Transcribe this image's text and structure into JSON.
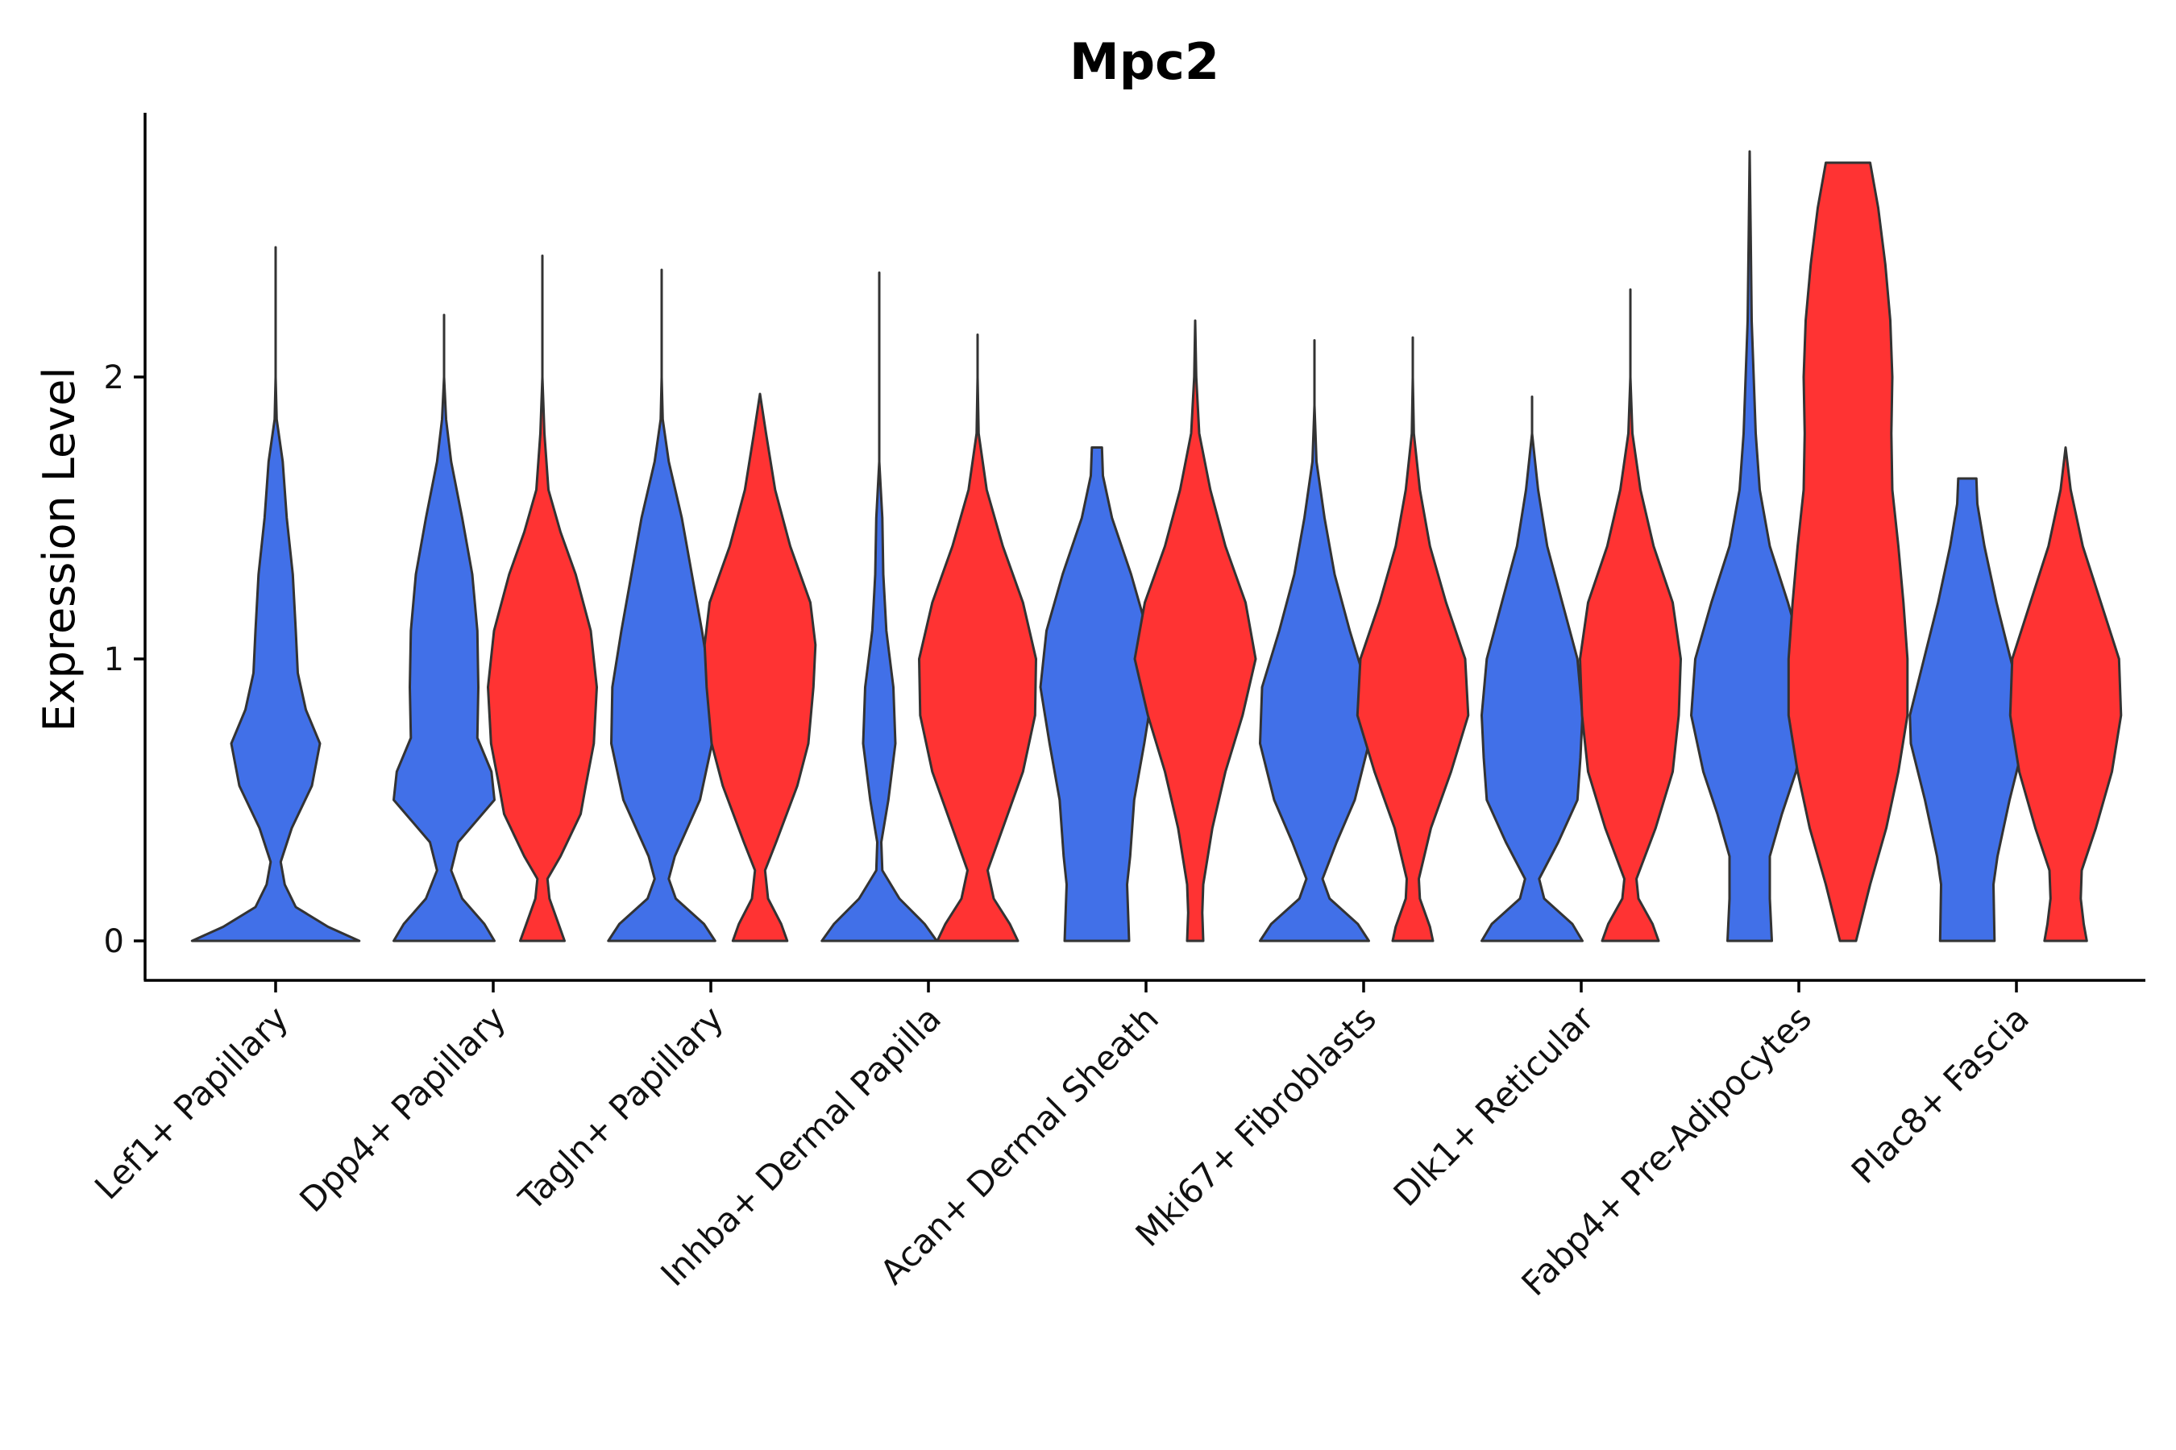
{
  "chart_data": {
    "type": "violin",
    "title": "Mpc2",
    "xlabel": "",
    "ylabel": "Expression Level",
    "ylim": [
      -0.14,
      2.94
    ],
    "yticks": [
      0,
      1,
      2
    ],
    "groups": [
      "group-blue",
      "group-red"
    ],
    "colors": {
      "group-blue": "#4170E8",
      "group-red": "#FF3333",
      "outline": "#333333"
    },
    "categories": [
      "Lef1+ Papillary",
      "Dpp4+ Papillary",
      "Tagln+ Papillary",
      "Inhba+ Dermal Papilla",
      "Acan+ Dermal Sheath",
      "Mki67+ Fibroblasts",
      "Dlk1+ Reticular",
      "Fabp4+ Pre-Adipocytes",
      "Plac8+ Fascia"
    ],
    "violins": [
      {
        "category": "Lef1+ Papillary",
        "group": "group-blue",
        "max": 2.46,
        "profile": [
          [
            0,
            0.83
          ],
          [
            0.05,
            0.52
          ],
          [
            0.12,
            0.2
          ],
          [
            0.2,
            0.09
          ],
          [
            0.28,
            0.05
          ],
          [
            0.4,
            0.16
          ],
          [
            0.55,
            0.36
          ],
          [
            0.7,
            0.44
          ],
          [
            0.82,
            0.3
          ],
          [
            0.95,
            0.22
          ],
          [
            1.1,
            0.2
          ],
          [
            1.3,
            0.17
          ],
          [
            1.5,
            0.11
          ],
          [
            1.7,
            0.07
          ],
          [
            1.85,
            0.01
          ],
          [
            2.0,
            0.0
          ],
          [
            2.46,
            0.0
          ]
        ]
      },
      {
        "category": "Dpp4+ Papillary",
        "group": "group-blue",
        "max": 2.22,
        "profile": [
          [
            0,
            0.5
          ],
          [
            0.06,
            0.4
          ],
          [
            0.15,
            0.18
          ],
          [
            0.25,
            0.07
          ],
          [
            0.35,
            0.14
          ],
          [
            0.5,
            0.5
          ],
          [
            0.6,
            0.47
          ],
          [
            0.72,
            0.33
          ],
          [
            0.9,
            0.34
          ],
          [
            1.1,
            0.33
          ],
          [
            1.3,
            0.28
          ],
          [
            1.5,
            0.18
          ],
          [
            1.7,
            0.07
          ],
          [
            1.85,
            0.02
          ],
          [
            2.0,
            0.0
          ],
          [
            2.22,
            0.0
          ]
        ]
      },
      {
        "category": "Dpp4+ Papillary",
        "group": "group-red",
        "max": 2.43,
        "profile": [
          [
            0,
            0.22
          ],
          [
            0.05,
            0.17
          ],
          [
            0.15,
            0.07
          ],
          [
            0.22,
            0.05
          ],
          [
            0.3,
            0.18
          ],
          [
            0.45,
            0.38
          ],
          [
            0.55,
            0.43
          ],
          [
            0.7,
            0.51
          ],
          [
            0.9,
            0.54
          ],
          [
            1.1,
            0.48
          ],
          [
            1.3,
            0.33
          ],
          [
            1.45,
            0.18
          ],
          [
            1.6,
            0.06
          ],
          [
            1.8,
            0.02
          ],
          [
            2.0,
            0.0
          ],
          [
            2.43,
            0.0
          ]
        ]
      },
      {
        "category": "Tagln+ Papillary",
        "group": "group-blue",
        "max": 2.38,
        "profile": [
          [
            0,
            0.53
          ],
          [
            0.06,
            0.42
          ],
          [
            0.15,
            0.14
          ],
          [
            0.22,
            0.07
          ],
          [
            0.3,
            0.13
          ],
          [
            0.5,
            0.38
          ],
          [
            0.7,
            0.5
          ],
          [
            0.9,
            0.49
          ],
          [
            1.1,
            0.4
          ],
          [
            1.3,
            0.3
          ],
          [
            1.5,
            0.2
          ],
          [
            1.7,
            0.07
          ],
          [
            1.85,
            0.01
          ],
          [
            2.0,
            0.0
          ],
          [
            2.38,
            0.0
          ]
        ]
      },
      {
        "category": "Tagln+ Papillary",
        "group": "group-red",
        "max": 1.94,
        "profile": [
          [
            0,
            0.27
          ],
          [
            0.06,
            0.21
          ],
          [
            0.15,
            0.08
          ],
          [
            0.25,
            0.05
          ],
          [
            0.35,
            0.16
          ],
          [
            0.55,
            0.37
          ],
          [
            0.7,
            0.48
          ],
          [
            0.9,
            0.53
          ],
          [
            1.05,
            0.55
          ],
          [
            1.2,
            0.5
          ],
          [
            1.4,
            0.3
          ],
          [
            1.6,
            0.15
          ],
          [
            1.8,
            0.06
          ],
          [
            1.94,
            0.0
          ]
        ]
      },
      {
        "category": "Inhba+ Dermal Papilla",
        "group": "group-blue",
        "max": 2.37,
        "profile": [
          [
            0,
            0.57
          ],
          [
            0.06,
            0.45
          ],
          [
            0.15,
            0.2
          ],
          [
            0.25,
            0.03
          ],
          [
            0.35,
            0.02
          ],
          [
            0.5,
            0.09
          ],
          [
            0.7,
            0.16
          ],
          [
            0.9,
            0.14
          ],
          [
            1.1,
            0.07
          ],
          [
            1.3,
            0.04
          ],
          [
            1.5,
            0.03
          ],
          [
            1.7,
            0.0
          ],
          [
            2.37,
            0.0
          ]
        ]
      },
      {
        "category": "Inhba+ Dermal Papilla",
        "group": "group-red",
        "max": 2.15,
        "profile": [
          [
            0,
            0.4
          ],
          [
            0.06,
            0.32
          ],
          [
            0.15,
            0.16
          ],
          [
            0.25,
            0.1
          ],
          [
            0.4,
            0.25
          ],
          [
            0.6,
            0.45
          ],
          [
            0.8,
            0.57
          ],
          [
            1.0,
            0.58
          ],
          [
            1.2,
            0.45
          ],
          [
            1.4,
            0.25
          ],
          [
            1.6,
            0.09
          ],
          [
            1.8,
            0.01
          ],
          [
            2.0,
            0.0
          ],
          [
            2.15,
            0.0
          ]
        ]
      },
      {
        "category": "Acan+ Dermal Sheath",
        "group": "group-blue",
        "max": 1.75,
        "profile": [
          [
            0,
            0.32
          ],
          [
            0.2,
            0.3
          ],
          [
            0.3,
            0.33
          ],
          [
            0.5,
            0.37
          ],
          [
            0.7,
            0.47
          ],
          [
            0.9,
            0.56
          ],
          [
            1.1,
            0.5
          ],
          [
            1.3,
            0.34
          ],
          [
            1.5,
            0.15
          ],
          [
            1.65,
            0.06
          ],
          [
            1.75,
            0.05
          ]
        ]
      },
      {
        "category": "Acan+ Dermal Sheath",
        "group": "group-red",
        "max": 2.2,
        "profile": [
          [
            0,
            0.08
          ],
          [
            0.1,
            0.07
          ],
          [
            0.2,
            0.08
          ],
          [
            0.4,
            0.17
          ],
          [
            0.6,
            0.3
          ],
          [
            0.8,
            0.47
          ],
          [
            1.0,
            0.6
          ],
          [
            1.2,
            0.5
          ],
          [
            1.4,
            0.3
          ],
          [
            1.6,
            0.15
          ],
          [
            1.8,
            0.04
          ],
          [
            2.0,
            0.01
          ],
          [
            2.2,
            0.0
          ]
        ]
      },
      {
        "category": "Mki67+ Fibroblasts",
        "group": "group-blue",
        "max": 2.13,
        "profile": [
          [
            0,
            0.54
          ],
          [
            0.06,
            0.43
          ],
          [
            0.15,
            0.15
          ],
          [
            0.22,
            0.08
          ],
          [
            0.35,
            0.22
          ],
          [
            0.5,
            0.4
          ],
          [
            0.7,
            0.54
          ],
          [
            0.9,
            0.52
          ],
          [
            1.1,
            0.35
          ],
          [
            1.3,
            0.2
          ],
          [
            1.5,
            0.1
          ],
          [
            1.7,
            0.02
          ],
          [
            1.9,
            0.0
          ],
          [
            2.13,
            0.0
          ]
        ]
      },
      {
        "category": "Mki67+ Fibroblasts",
        "group": "group-red",
        "max": 2.14,
        "profile": [
          [
            0,
            0.2
          ],
          [
            0.05,
            0.17
          ],
          [
            0.15,
            0.07
          ],
          [
            0.22,
            0.06
          ],
          [
            0.4,
            0.18
          ],
          [
            0.6,
            0.38
          ],
          [
            0.8,
            0.55
          ],
          [
            1.0,
            0.52
          ],
          [
            1.2,
            0.33
          ],
          [
            1.4,
            0.17
          ],
          [
            1.6,
            0.07
          ],
          [
            1.8,
            0.01
          ],
          [
            2.0,
            0.0
          ],
          [
            2.14,
            0.0
          ]
        ]
      },
      {
        "category": "Dlk1+ Reticular",
        "group": "group-blue",
        "max": 1.93,
        "profile": [
          [
            0,
            0.5
          ],
          [
            0.06,
            0.4
          ],
          [
            0.15,
            0.12
          ],
          [
            0.22,
            0.07
          ],
          [
            0.35,
            0.26
          ],
          [
            0.5,
            0.45
          ],
          [
            0.65,
            0.48
          ],
          [
            0.8,
            0.5
          ],
          [
            1.0,
            0.45
          ],
          [
            1.2,
            0.3
          ],
          [
            1.4,
            0.15
          ],
          [
            1.6,
            0.06
          ],
          [
            1.8,
            0.0
          ],
          [
            1.93,
            0.0
          ]
        ]
      },
      {
        "category": "Dlk1+ Reticular",
        "group": "group-red",
        "max": 2.31,
        "profile": [
          [
            0,
            0.28
          ],
          [
            0.06,
            0.22
          ],
          [
            0.15,
            0.08
          ],
          [
            0.22,
            0.06
          ],
          [
            0.4,
            0.25
          ],
          [
            0.6,
            0.42
          ],
          [
            0.8,
            0.48
          ],
          [
            1.0,
            0.5
          ],
          [
            1.2,
            0.42
          ],
          [
            1.4,
            0.23
          ],
          [
            1.6,
            0.1
          ],
          [
            1.8,
            0.02
          ],
          [
            2.0,
            0.0
          ],
          [
            2.31,
            0.0
          ]
        ]
      },
      {
        "category": "Fabp4+ Pre-Adipocytes",
        "group": "group-blue",
        "max": 2.8,
        "profile": [
          [
            0,
            0.22
          ],
          [
            0.15,
            0.2
          ],
          [
            0.3,
            0.2
          ],
          [
            0.45,
            0.32
          ],
          [
            0.6,
            0.46
          ],
          [
            0.8,
            0.58
          ],
          [
            1.0,
            0.54
          ],
          [
            1.2,
            0.38
          ],
          [
            1.4,
            0.2
          ],
          [
            1.6,
            0.1
          ],
          [
            1.8,
            0.06
          ],
          [
            2.0,
            0.04
          ],
          [
            2.2,
            0.02
          ],
          [
            2.5,
            0.01
          ],
          [
            2.8,
            0.0
          ]
        ]
      },
      {
        "category": "Fabp4+ Pre-Adipocytes",
        "group": "group-red",
        "max": 2.76,
        "profile": [
          [
            0,
            0.08
          ],
          [
            0.2,
            0.22
          ],
          [
            0.4,
            0.38
          ],
          [
            0.6,
            0.5
          ],
          [
            0.8,
            0.59
          ],
          [
            1.0,
            0.59
          ],
          [
            1.2,
            0.55
          ],
          [
            1.4,
            0.5
          ],
          [
            1.6,
            0.44
          ],
          [
            1.8,
            0.43
          ],
          [
            2.0,
            0.44
          ],
          [
            2.2,
            0.42
          ],
          [
            2.4,
            0.37
          ],
          [
            2.6,
            0.3
          ],
          [
            2.76,
            0.22
          ]
        ]
      },
      {
        "category": "Plac8+ Fascia",
        "group": "group-blue",
        "max": 1.64,
        "profile": [
          [
            0,
            0.27
          ],
          [
            0.2,
            0.26
          ],
          [
            0.3,
            0.3
          ],
          [
            0.5,
            0.42
          ],
          [
            0.7,
            0.56
          ],
          [
            0.8,
            0.57
          ],
          [
            1.0,
            0.43
          ],
          [
            1.2,
            0.29
          ],
          [
            1.4,
            0.17
          ],
          [
            1.55,
            0.1
          ],
          [
            1.64,
            0.09
          ]
        ]
      },
      {
        "category": "Plac8+ Fascia",
        "group": "group-red",
        "max": 1.75,
        "profile": [
          [
            0,
            0.21
          ],
          [
            0.06,
            0.18
          ],
          [
            0.15,
            0.15
          ],
          [
            0.25,
            0.16
          ],
          [
            0.4,
            0.3
          ],
          [
            0.6,
            0.46
          ],
          [
            0.8,
            0.55
          ],
          [
            1.0,
            0.53
          ],
          [
            1.2,
            0.35
          ],
          [
            1.4,
            0.17
          ],
          [
            1.6,
            0.05
          ],
          [
            1.75,
            0.0
          ]
        ]
      }
    ]
  }
}
